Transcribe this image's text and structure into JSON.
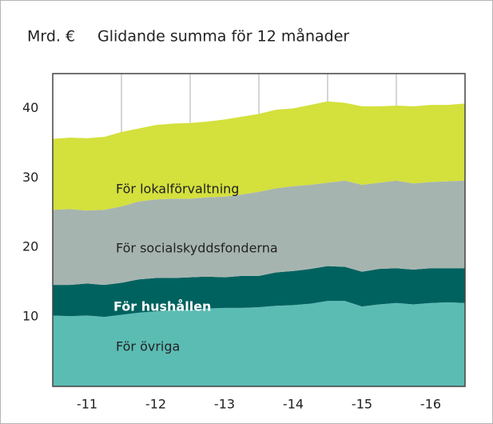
{
  "chart_data": {
    "type": "stacked-area",
    "unit": "Mrd. €",
    "title": "Glidande summa för 12 månader",
    "x": [
      2011,
      2011.25,
      2011.5,
      2011.75,
      2012,
      2012.25,
      2012.5,
      2012.75,
      2013,
      2013.25,
      2013.5,
      2013.75,
      2014,
      2014.25,
      2014.5,
      2014.75,
      2015,
      2015.25,
      2015.5,
      2015.75,
      2016,
      2016.25,
      2016.5,
      2016.75,
      2017
    ],
    "xlim": [
      2011,
      2017
    ],
    "xticks": [
      {
        "value": 2011.5,
        "label": "-11"
      },
      {
        "value": 2012.5,
        "label": "-12"
      },
      {
        "value": 2013.5,
        "label": "-13"
      },
      {
        "value": 2014.5,
        "label": "-14"
      },
      {
        "value": 2015.5,
        "label": "-15"
      },
      {
        "value": 2016.5,
        "label": "-16"
      }
    ],
    "ylim": [
      0,
      45
    ],
    "yticks": [
      10,
      20,
      30,
      40
    ],
    "grid": true,
    "series": [
      {
        "name": "För övriga",
        "color": "#5bbcb4",
        "label_color": "#222222",
        "values": [
          10.2,
          10.1,
          10.2,
          10.0,
          10.3,
          10.6,
          10.8,
          11.0,
          11.0,
          11.2,
          11.3,
          11.3,
          11.4,
          11.6,
          11.7,
          11.9,
          12.3,
          12.3,
          11.5,
          11.8,
          12.0,
          11.8,
          12.0,
          12.1,
          12.0
        ]
      },
      {
        "name": "För hushållen",
        "color": "#00625f",
        "label_color": "#ffffff",
        "values": [
          4.4,
          4.5,
          4.6,
          4.6,
          4.6,
          4.8,
          4.8,
          4.6,
          4.7,
          4.6,
          4.4,
          4.6,
          4.5,
          4.8,
          4.9,
          5.0,
          5.0,
          4.9,
          5.0,
          5.1,
          5.0,
          5.0,
          5.0,
          4.9,
          5.0
        ]
      },
      {
        "name": "För socialskyddsfonderna",
        "color": "#a6b4b0",
        "label_color": "#222222",
        "values": [
          10.8,
          10.9,
          10.5,
          10.8,
          11.0,
          11.2,
          11.3,
          11.4,
          11.3,
          11.4,
          11.6,
          11.7,
          12.1,
          12.1,
          12.2,
          12.1,
          12.0,
          12.4,
          12.5,
          12.4,
          12.6,
          12.4,
          12.4,
          12.5,
          12.6
        ]
      },
      {
        "name": "För lokalförvaltning",
        "color": "#d4e03c",
        "label_color": "#222222",
        "values": [
          10.2,
          10.3,
          10.4,
          10.5,
          10.7,
          10.5,
          10.7,
          10.8,
          10.9,
          10.9,
          11.1,
          11.2,
          11.2,
          11.3,
          11.2,
          11.5,
          11.7,
          11.2,
          11.3,
          11.0,
          10.8,
          11.1,
          11.1,
          11.0,
          11.1
        ]
      }
    ]
  }
}
